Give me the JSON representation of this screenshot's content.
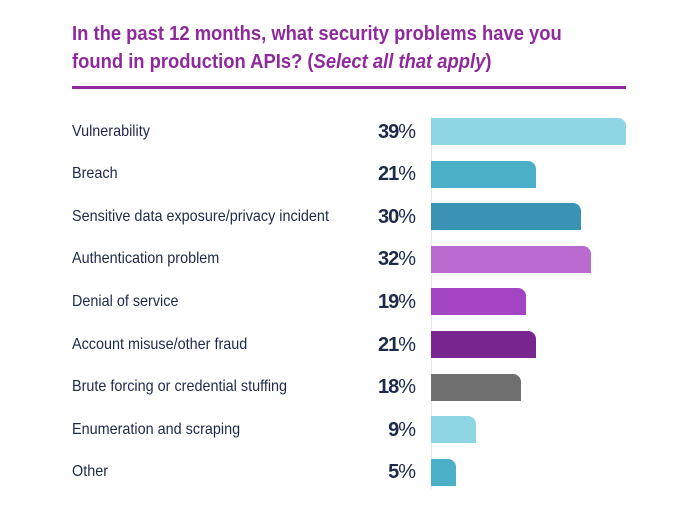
{
  "header": {
    "title_main": "In the past 12 months, what security problems have you found in production APIs? (",
    "title_italic": "Select all that apply",
    "title_end": ")"
  },
  "chart_data": {
    "type": "bar",
    "orientation": "horizontal",
    "title": "In the past 12 months, what security problems have you found in production APIs? (Select all that apply)",
    "unit": "%",
    "xlim": [
      0,
      39
    ],
    "categories": [
      "Vulnerability",
      "Breach",
      "Sensitive data exposure/privacy incident",
      "Authentication problem",
      "Denial of service",
      "Account misuse/other fraud",
      "Brute forcing or credential stuffing",
      "Enumeration and scraping",
      "Other"
    ],
    "values": [
      39,
      21,
      30,
      32,
      19,
      21,
      18,
      9,
      5
    ],
    "colors": [
      "#8fd6e4",
      "#4ab0c8",
      "#3a93b4",
      "#b96bd0",
      "#a344c3",
      "#7a2690",
      "#6f6f6f",
      "#8fd6e4",
      "#4ab0c8"
    ]
  }
}
